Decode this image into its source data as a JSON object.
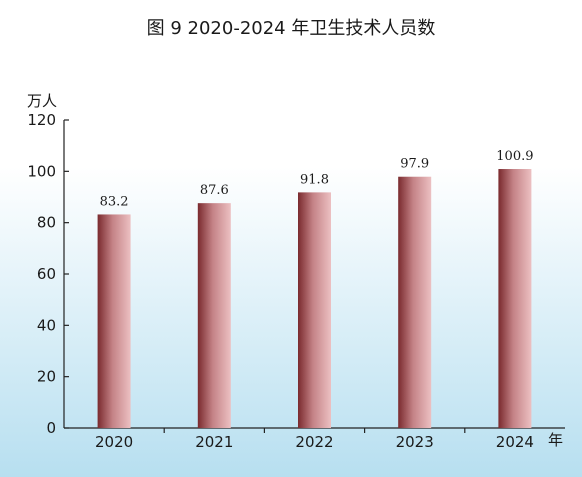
{
  "chart_data": {
    "type": "bar",
    "title": "图 9 2020-2024 年卫生技术人员数",
    "ylabel": "万人",
    "xlabel": "年",
    "categories": [
      "2020",
      "2021",
      "2022",
      "2023",
      "2024"
    ],
    "values": [
      83.2,
      87.6,
      91.8,
      97.9,
      100.9
    ],
    "value_labels": [
      "83.2",
      "87.6",
      "91.8",
      "97.9",
      "100.9"
    ],
    "ylim": [
      0,
      120
    ],
    "yticks": [
      0,
      20,
      40,
      60,
      80,
      100,
      120
    ],
    "grid": false,
    "legend": "none",
    "colors": {
      "bar_dark": "#7a2a2e",
      "bar_mid": "#c48286",
      "bar_light": "#ecc0c2",
      "background_top": "#ffffff",
      "background_bottom": "#b7dff0",
      "axis": "#222222"
    }
  }
}
